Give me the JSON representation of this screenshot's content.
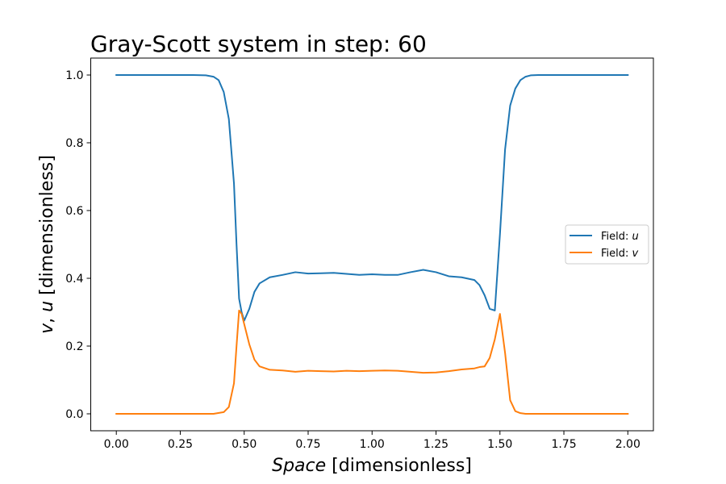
{
  "chart_data": {
    "type": "line",
    "title": "Gray-Scott system in step: 60",
    "xlabel_italic": "Space",
    "xlabel_rest": " [dimensionless]",
    "ylabel_var1": "v",
    "ylabel_sep": ", ",
    "ylabel_var2": "u",
    "ylabel_rest": " [dimensionless]",
    "xlim": [
      -0.1,
      2.1
    ],
    "ylim": [
      -0.05,
      1.05
    ],
    "xticks": [
      0.0,
      0.25,
      0.5,
      0.75,
      1.0,
      1.25,
      1.5,
      1.75,
      2.0
    ],
    "xtick_labels": [
      "0.00",
      "0.25",
      "0.50",
      "0.75",
      "1.00",
      "1.25",
      "1.50",
      "1.75",
      "2.00"
    ],
    "yticks": [
      0.0,
      0.2,
      0.4,
      0.6,
      0.8,
      1.0
    ],
    "ytick_labels": [
      "0.0",
      "0.2",
      "0.4",
      "0.6",
      "0.8",
      "1.0"
    ],
    "grid": false,
    "legend_position": "center-right",
    "series": [
      {
        "name_prefix": "Field: ",
        "name_var": "u",
        "color": "#1f77b4",
        "x": [
          0.0,
          0.1,
          0.2,
          0.3,
          0.35,
          0.38,
          0.4,
          0.42,
          0.44,
          0.46,
          0.47,
          0.48,
          0.49,
          0.5,
          0.52,
          0.54,
          0.56,
          0.6,
          0.65,
          0.7,
          0.75,
          0.8,
          0.85,
          0.9,
          0.95,
          1.0,
          1.05,
          1.1,
          1.15,
          1.2,
          1.25,
          1.3,
          1.35,
          1.4,
          1.42,
          1.44,
          1.46,
          1.48,
          1.5,
          1.52,
          1.54,
          1.56,
          1.58,
          1.6,
          1.62,
          1.65,
          1.7,
          1.8,
          1.9,
          2.0
        ],
        "y": [
          1.0,
          1.0,
          1.0,
          1.0,
          0.999,
          0.995,
          0.985,
          0.95,
          0.87,
          0.68,
          0.5,
          0.34,
          0.3,
          0.275,
          0.31,
          0.36,
          0.385,
          0.403,
          0.41,
          0.418,
          0.414,
          0.415,
          0.416,
          0.413,
          0.41,
          0.412,
          0.41,
          0.41,
          0.418,
          0.425,
          0.418,
          0.406,
          0.403,
          0.395,
          0.38,
          0.35,
          0.31,
          0.305,
          0.53,
          0.78,
          0.91,
          0.96,
          0.985,
          0.995,
          0.999,
          1.0,
          1.0,
          1.0,
          1.0,
          1.0
        ]
      },
      {
        "name_prefix": "Field: ",
        "name_var": "v",
        "color": "#ff7f0e",
        "x": [
          0.0,
          0.1,
          0.2,
          0.3,
          0.38,
          0.42,
          0.44,
          0.46,
          0.47,
          0.48,
          0.49,
          0.5,
          0.52,
          0.54,
          0.56,
          0.6,
          0.65,
          0.7,
          0.75,
          0.8,
          0.85,
          0.9,
          0.95,
          1.0,
          1.05,
          1.1,
          1.15,
          1.2,
          1.25,
          1.3,
          1.35,
          1.4,
          1.42,
          1.44,
          1.46,
          1.48,
          1.5,
          1.52,
          1.54,
          1.56,
          1.58,
          1.6,
          1.7,
          1.8,
          1.9,
          2.0
        ],
        "y": [
          0.0,
          0.0,
          0.0,
          0.0,
          0.0,
          0.005,
          0.02,
          0.09,
          0.2,
          0.305,
          0.295,
          0.265,
          0.205,
          0.16,
          0.14,
          0.13,
          0.128,
          0.124,
          0.127,
          0.126,
          0.125,
          0.127,
          0.126,
          0.127,
          0.128,
          0.127,
          0.124,
          0.121,
          0.122,
          0.126,
          0.131,
          0.134,
          0.138,
          0.14,
          0.165,
          0.22,
          0.295,
          0.18,
          0.04,
          0.008,
          0.002,
          0.0,
          0.0,
          0.0,
          0.0,
          0.0
        ]
      }
    ]
  }
}
